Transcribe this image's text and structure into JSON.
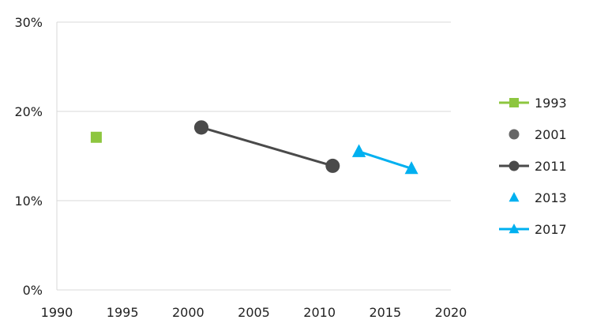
{
  "chart_data": {
    "type": "scatter",
    "title": "",
    "xlabel": "",
    "ylabel": "",
    "xlim": [
      1990,
      2020
    ],
    "ylim": [
      0,
      30
    ],
    "x_ticks": [
      1990,
      1995,
      2000,
      2005,
      2010,
      2015,
      2020
    ],
    "y_ticks": [
      0,
      10,
      20,
      30
    ],
    "x_tick_labels": [
      "1990",
      "1995",
      "2000",
      "2005",
      "2010",
      "2015",
      "2020"
    ],
    "y_tick_labels": [
      "0%",
      "10%",
      "20%",
      "30%"
    ],
    "grid": "horizontal",
    "legend_position": "right",
    "series": [
      {
        "name": "1993",
        "color": "#8dc63f",
        "marker": "square",
        "line": true,
        "points": [
          {
            "x": 1993,
            "y": 17.1
          }
        ]
      },
      {
        "name": "2001",
        "color": "#666666",
        "marker": "circle",
        "line": false,
        "points": [
          {
            "x": 2001,
            "y": 18.2
          }
        ]
      },
      {
        "name": "2011",
        "color": "#4a4a4a",
        "marker": "circle",
        "line": true,
        "points": [
          {
            "x": 2001,
            "y": 18.2
          },
          {
            "x": 2011,
            "y": 13.9
          }
        ]
      },
      {
        "name": "2013",
        "color": "#00b0f0",
        "marker": "triangle",
        "line": false,
        "points": [
          {
            "x": 2013,
            "y": 15.5
          }
        ]
      },
      {
        "name": "2017",
        "color": "#00b0f0",
        "marker": "triangle",
        "line": true,
        "points": [
          {
            "x": 2013,
            "y": 15.5
          },
          {
            "x": 2017,
            "y": 13.6
          }
        ]
      }
    ]
  }
}
